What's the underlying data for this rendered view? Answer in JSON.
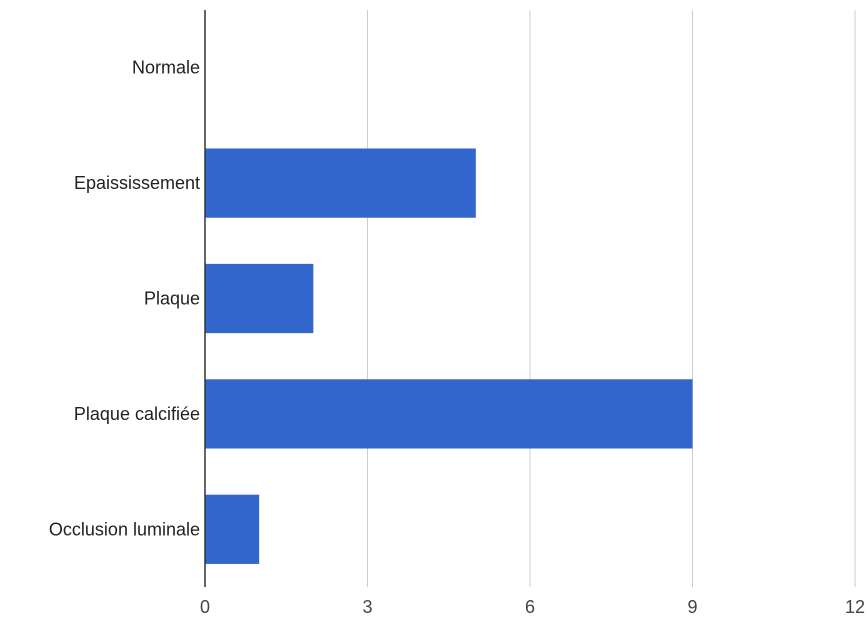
{
  "chart_data": {
    "type": "bar",
    "orientation": "horizontal",
    "categories": [
      "Normale",
      "Epaississement",
      "Plaque",
      "Plaque calcifiée",
      "Occlusion luminale"
    ],
    "values": [
      0,
      5,
      2,
      9,
      1
    ],
    "xlim": [
      0,
      12
    ],
    "x_ticks": [
      0,
      3,
      6,
      9,
      12
    ],
    "x_tick_labels": [
      "0",
      "3",
      "6",
      "9",
      "12"
    ],
    "grid": "vertical",
    "legend": "none",
    "colors": {
      "bar": "#3366cc",
      "grid": "#cccccc",
      "axis": "#333333"
    }
  }
}
